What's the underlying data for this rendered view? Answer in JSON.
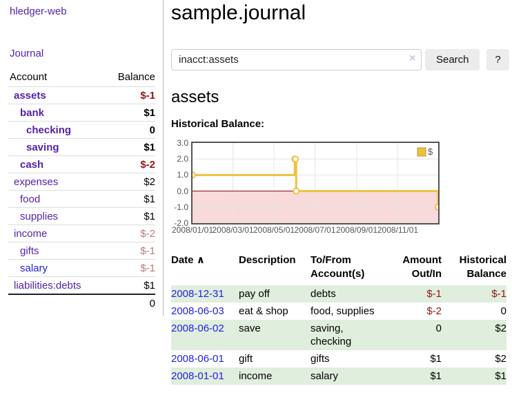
{
  "colors": {
    "purple": "#5522aa",
    "blue": "#2222dd",
    "darkred": "#961515",
    "softred": "#bb7878",
    "rowgreen": "#e0eedd"
  },
  "sidebar": {
    "app_title": "hledger-web",
    "journal_link": "Journal",
    "table": {
      "headers": {
        "account": "Account",
        "balance": "Balance"
      },
      "accounts": [
        {
          "name": "assets",
          "depth": 1,
          "bold": true,
          "link": "purple",
          "balance": "$-1",
          "balance_style": "neg-strong"
        },
        {
          "name": "bank",
          "depth": 2,
          "bold": true,
          "link": "purple",
          "balance": "$1",
          "balance_style": "pos"
        },
        {
          "name": "checking",
          "depth": 3,
          "bold": true,
          "link": "purple",
          "balance": "0",
          "balance_style": "pos"
        },
        {
          "name": "saving",
          "depth": 3,
          "bold": true,
          "link": "purple",
          "balance": "$1",
          "balance_style": "pos"
        },
        {
          "name": "cash",
          "depth": 2,
          "bold": true,
          "link": "purple",
          "balance": "$-2",
          "balance_style": "neg-strong"
        },
        {
          "name": "expenses",
          "depth": 1,
          "bold": false,
          "link": "purple",
          "balance": "$2",
          "balance_style": "pos"
        },
        {
          "name": "food",
          "depth": 2,
          "bold": false,
          "link": "purple",
          "balance": "$1",
          "balance_style": "pos"
        },
        {
          "name": "supplies",
          "depth": 2,
          "bold": false,
          "link": "purple",
          "balance": "$1",
          "balance_style": "pos"
        },
        {
          "name": "income",
          "depth": 1,
          "bold": false,
          "link": "purple",
          "balance": "$-2",
          "balance_style": "neg-soft"
        },
        {
          "name": "gifts",
          "depth": 2,
          "bold": false,
          "link": "purple",
          "balance": "$-1",
          "balance_style": "neg-soft"
        },
        {
          "name": "salary",
          "depth": 2,
          "bold": false,
          "link": "blue",
          "balance": "$-1",
          "balance_style": "neg-soft"
        },
        {
          "name": "liabilities:debts",
          "depth": 1,
          "bold": false,
          "link": "purple",
          "balance": "$1",
          "balance_style": "pos"
        }
      ],
      "total": "0"
    }
  },
  "header": {
    "title": "sample.journal"
  },
  "search": {
    "value": "inacct:assets",
    "clear_icon": "×",
    "search_button": "Search",
    "help_button": "?"
  },
  "account_page": {
    "heading": "assets",
    "chart_title": "Historical Balance:"
  },
  "chart_data": {
    "type": "line",
    "subtype": "step",
    "title": "Historical Balance",
    "series": [
      {
        "name": "$",
        "color": "#edc240",
        "points": [
          {
            "date": "2008-01-01",
            "day": 0,
            "value": 1
          },
          {
            "date": "2008-06-01",
            "day": 152,
            "value": 2
          },
          {
            "date": "2008-06-02",
            "day": 153,
            "value": 2
          },
          {
            "date": "2008-06-03",
            "day": 154,
            "value": 0
          },
          {
            "date": "2008-12-31",
            "day": 365,
            "value": -1
          }
        ]
      }
    ],
    "ylim": [
      -2,
      3
    ],
    "ytick_labels": [
      "3.0",
      "2.0",
      "1.0",
      "0.0",
      "-1.0",
      "-2.0"
    ],
    "ytick_values": [
      3,
      2,
      1,
      0,
      -1,
      -2
    ],
    "xtick_labels": [
      "2008/01/01",
      "2008/03/01",
      "2008/05/01",
      "2008/07/01",
      "2008/09/01",
      "2008/11/01"
    ],
    "xtick_days": [
      0,
      60,
      121,
      182,
      244,
      305
    ],
    "x_range_days": 365,
    "grid": true,
    "grid_color": "#e4e4e4",
    "negative_fill": "#f9dada",
    "zero_line_color": "#8b0000",
    "marker": {
      "shape": "open-circle",
      "fill": "#ffffff"
    },
    "legend": {
      "label": "$",
      "position": "top-right",
      "swatch_color": "#edc240",
      "swatch_border": "#bd9b2f"
    }
  },
  "register_table": {
    "headers": {
      "date": "Date",
      "sort_icon": "∧",
      "description": "Description",
      "accounts": "To/From Account(s)",
      "amount": "Amount Out/In",
      "balance": "Historical Balance"
    },
    "rows": [
      {
        "date": "2008-12-31",
        "description": "pay off",
        "accounts": "debts",
        "amount": "$-1",
        "amount_neg": true,
        "balance": "$-1",
        "balance_neg": true,
        "shaded": true
      },
      {
        "date": "2008-06-03",
        "description": "eat & shop",
        "accounts": "food, supplies",
        "amount": "$-2",
        "amount_neg": true,
        "balance": "0",
        "balance_neg": false,
        "shaded": false
      },
      {
        "date": "2008-06-02",
        "description": "save",
        "accounts": "saving, checking",
        "amount": "0",
        "amount_neg": false,
        "balance": "$2",
        "balance_neg": false,
        "shaded": true
      },
      {
        "date": "2008-06-01",
        "description": "gift",
        "accounts": "gifts",
        "amount": "$1",
        "amount_neg": false,
        "balance": "$2",
        "balance_neg": false,
        "shaded": false
      },
      {
        "date": "2008-01-01",
        "description": "income",
        "accounts": "salary",
        "amount": "$1",
        "amount_neg": false,
        "balance": "$1",
        "balance_neg": false,
        "shaded": true
      }
    ]
  }
}
